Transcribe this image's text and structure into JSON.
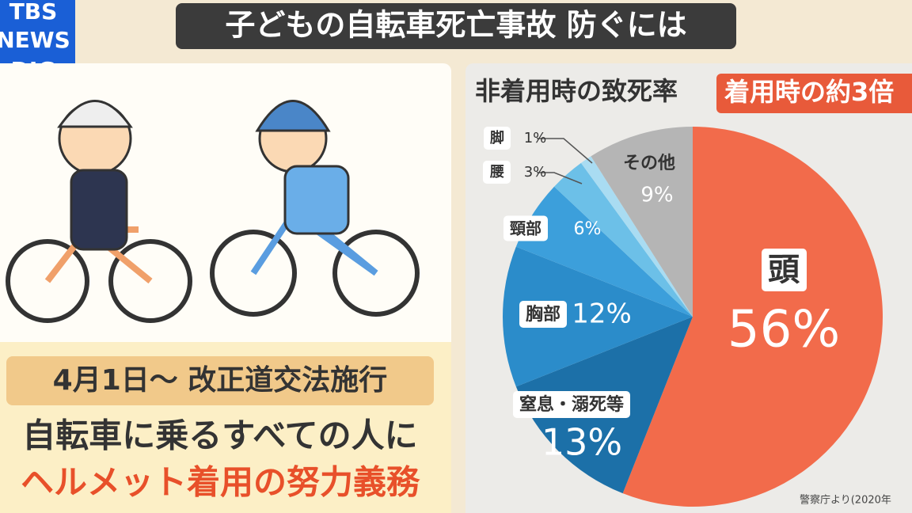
{
  "header": {
    "title": "子どもの自転車死亡事故 防ぐには",
    "logo": [
      "TBS",
      "NEWS",
      "DIG"
    ]
  },
  "left_panel": {
    "date_line": "4月1日〜 改正道交法施行",
    "line1": "自転車に乗るすべての人に",
    "line2": "ヘルメット着用の努力義務"
  },
  "chart_data": {
    "type": "pie",
    "title": "非着用時の致死率",
    "subtitle": "着用時の約3倍",
    "categories": [
      "頭",
      "窒息・溺死等",
      "胸部",
      "頸部",
      "腰",
      "脚",
      "その他"
    ],
    "values": [
      56,
      13,
      12,
      6,
      3,
      1,
      9
    ],
    "value_labels": [
      "56%",
      "13%",
      "12%",
      "6%",
      "3%",
      "1%",
      "9%"
    ],
    "colors": [
      "#f26b4b",
      "#1c70a8",
      "#2b8cca",
      "#3c9fdb",
      "#6cc0e8",
      "#a9dcf2",
      "#b5b5b5"
    ],
    "source": "警察庁より(2020年"
  }
}
